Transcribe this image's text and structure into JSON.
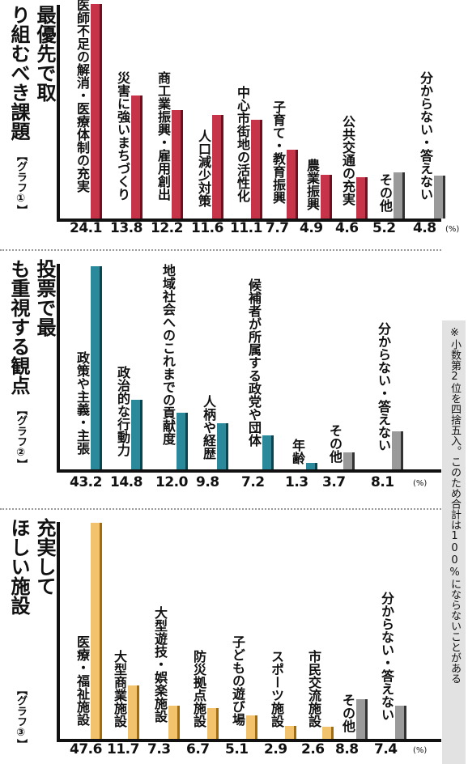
{
  "chart_data": [
    {
      "type": "bar",
      "title": "最優先で取り組むべき課題",
      "label": "【グラフ①】",
      "unit": "(%)",
      "categories": [
        "医師不足の解消・医療体制の充実",
        "災害に強いまちづくり",
        "商工業振興・雇用創出",
        "人口減少対策",
        "中心市街地の活性化",
        "子育て・教育振興",
        "農業振興",
        "公共交通の充実",
        "その他",
        "分からない・答えない"
      ],
      "values": [
        24.1,
        13.8,
        12.2,
        11.6,
        11.1,
        7.7,
        4.9,
        4.6,
        5.2,
        4.8
      ],
      "value_labels": [
        "24.1",
        "13.8",
        "12.2",
        "11.6",
        "11.1",
        "7.7",
        "4.9",
        "4.6",
        "5.2",
        "4.8"
      ],
      "colors": [
        "red",
        "red",
        "red",
        "red",
        "red",
        "red",
        "red",
        "red",
        "gray",
        "gray"
      ]
    },
    {
      "type": "bar",
      "title": "投票で最も重視する観点",
      "label": "【グラフ②】",
      "unit": "(%)",
      "categories": [
        "政策や主義・主張",
        "政治的な行動力",
        "地域社会へのこれまでの貢献度",
        "人柄や経歴",
        "候補者が所属する政党や団体",
        "年齢",
        "その他",
        "分からない・答えない"
      ],
      "values": [
        43.2,
        14.8,
        12.0,
        9.8,
        7.2,
        1.3,
        3.7,
        8.1
      ],
      "value_labels": [
        "43.2",
        "14.8",
        "12.0",
        "9.8",
        "7.2",
        "1.3",
        "3.7",
        "8.1"
      ],
      "colors": [
        "blue",
        "blue",
        "blue",
        "blue",
        "blue",
        "blue",
        "gray",
        "gray"
      ]
    },
    {
      "type": "bar",
      "title": "充実してほしい施設",
      "label": "【グラフ③】",
      "unit": "(%)",
      "categories": [
        "医療・福祉施設",
        "大型商業施設",
        "大型遊技・娯楽施設",
        "防災拠点施設",
        "子どもの遊び場",
        "スポーツ施設",
        "市民交流施設",
        "その他",
        "分からない・答えない"
      ],
      "values": [
        47.6,
        11.7,
        7.3,
        6.7,
        5.1,
        2.9,
        2.6,
        8.8,
        7.4
      ],
      "value_labels": [
        "47.6",
        "11.7",
        "7.3",
        "6.7",
        "5.1",
        "2.9",
        "2.6",
        "8.8",
        "7.4"
      ],
      "colors": [
        "orange",
        "orange",
        "orange",
        "orange",
        "orange",
        "orange",
        "orange",
        "gray",
        "gray"
      ]
    }
  ],
  "note": "※小数第2位を四捨五入。このため合計は100%にならないことがある"
}
